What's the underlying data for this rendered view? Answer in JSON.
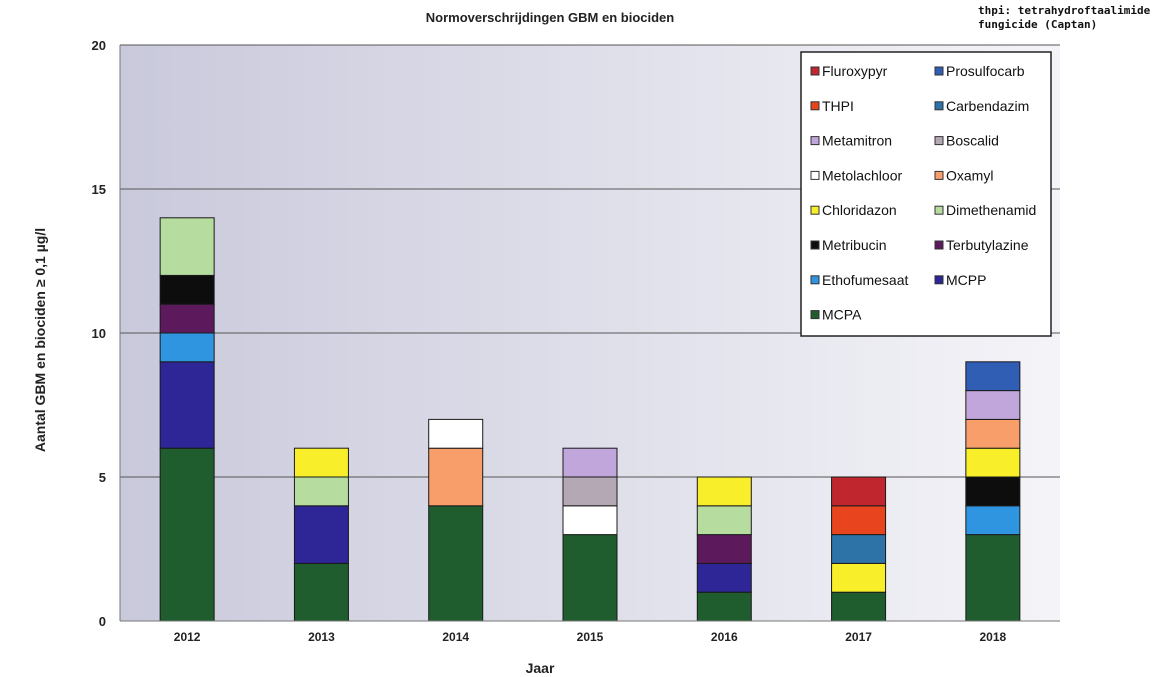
{
  "corner_note": [
    "thpi: tetrahydroftaalimide",
    "fungicide (Captan)"
  ],
  "chart_data": {
    "type": "bar",
    "stacked": true,
    "title": "Normoverschrijdingen GBM en biociden",
    "xlabel": "Jaar",
    "ylabel": "Aantal GBM en biociden ≥ 0,1 µg/l",
    "ylim": [
      0,
      20
    ],
    "yticks": [
      0,
      5,
      10,
      15,
      20
    ],
    "grid": true,
    "legend_position": "top-right",
    "categories": [
      "2012",
      "2013",
      "2014",
      "2015",
      "2016",
      "2017",
      "2018"
    ],
    "series": [
      {
        "name": "MCPA",
        "color": "#1f5c2e",
        "values": [
          6,
          2,
          4,
          3,
          1,
          1,
          3
        ]
      },
      {
        "name": "MCPP",
        "color": "#2e2596",
        "values": [
          3,
          2,
          0,
          0,
          1,
          0,
          0
        ]
      },
      {
        "name": "Ethofumesaat",
        "color": "#2f95e0",
        "values": [
          1,
          0,
          0,
          0,
          0,
          0,
          1
        ]
      },
      {
        "name": "Terbutylazine",
        "color": "#5c1a5c",
        "values": [
          1,
          0,
          0,
          0,
          1,
          0,
          0
        ]
      },
      {
        "name": "Metribucin",
        "color": "#0d0d0d",
        "values": [
          1,
          0,
          0,
          0,
          0,
          0,
          1
        ]
      },
      {
        "name": "Dimethenamid",
        "color": "#b6dca0",
        "values": [
          2,
          1,
          0,
          0,
          1,
          0,
          0
        ]
      },
      {
        "name": "Chloridazon",
        "color": "#f8ee2a",
        "values": [
          0,
          1,
          0,
          0,
          1,
          1,
          1
        ]
      },
      {
        "name": "Oxamyl",
        "color": "#f89e6a",
        "values": [
          0,
          0,
          2,
          0,
          0,
          0,
          1
        ]
      },
      {
        "name": "Metolachloor",
        "color": "#ffffff",
        "values": [
          0,
          0,
          1,
          1,
          0,
          0,
          0
        ]
      },
      {
        "name": "Boscalid",
        "color": "#b5a8b5",
        "values": [
          0,
          0,
          0,
          1,
          0,
          0,
          0
        ]
      },
      {
        "name": "Metamitron",
        "color": "#c1a6dc",
        "values": [
          0,
          0,
          0,
          1,
          0,
          0,
          1
        ]
      },
      {
        "name": "Carbendazim",
        "color": "#2d73a8",
        "values": [
          0,
          0,
          0,
          0,
          0,
          1,
          0
        ]
      },
      {
        "name": "THPI",
        "color": "#e8441e",
        "values": [
          0,
          0,
          0,
          0,
          0,
          1,
          0
        ]
      },
      {
        "name": "Prosulfocarb",
        "color": "#2f5eb4",
        "values": [
          0,
          0,
          0,
          0,
          0,
          0,
          1
        ]
      },
      {
        "name": "Fluroxypyr",
        "color": "#c0262e",
        "values": [
          0,
          0,
          0,
          0,
          0,
          1,
          0
        ]
      }
    ],
    "legend_order": [
      "Fluroxypyr",
      "Prosulfocarb",
      "THPI",
      "Carbendazim",
      "Metamitron",
      "Boscalid",
      "Metolachloor",
      "Oxamyl",
      "Chloridazon",
      "Dimethenamid",
      "Metribucin",
      "Terbutylazine",
      "Ethofumesaat",
      "MCPP",
      "MCPA"
    ]
  }
}
